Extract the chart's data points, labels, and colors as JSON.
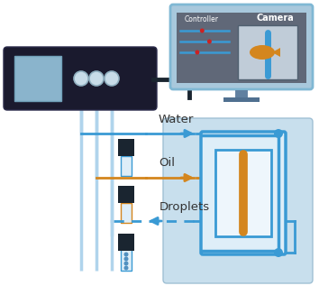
{
  "bg_color": "#ffffff",
  "light_blue_panel_bg": "#c8dfed",
  "controller_box_color": "#1a1a2e",
  "monitor_body_color": "#a8c8dc",
  "monitor_screen_bg": "#606878",
  "water_color": "#3a9ad4",
  "oil_color": "#d4861e",
  "valve_color": "#1a2530",
  "chip_border_color": "#3a9ad4",
  "chip_fill_color": "#deeef8",
  "vial_fill": "#deeef8",
  "title_water": "Water",
  "title_oil": "Oil",
  "title_droplets": "Droplets",
  "title_controller": "Controller",
  "title_camera": "Camera",
  "controller_screen_color": "#8ab4cc",
  "dot_color": "#cc2222",
  "cable_color": "#1a2530",
  "connector_face": "#c8dce8",
  "connector_edge": "#90b0c0",
  "tube_light_blue": "#b0d4ec",
  "droplet_dashed": "#3a9ad4",
  "chip_junction_dot": "#3a9ad4"
}
